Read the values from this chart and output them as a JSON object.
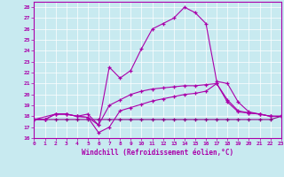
{
  "xlabel": "Windchill (Refroidissement éolien,°C)",
  "xlim": [
    0,
    23
  ],
  "ylim": [
    16,
    28.5
  ],
  "yticks": [
    16,
    17,
    18,
    19,
    20,
    21,
    22,
    23,
    24,
    25,
    26,
    27,
    28
  ],
  "xticks": [
    0,
    1,
    2,
    3,
    4,
    5,
    6,
    7,
    8,
    9,
    10,
    11,
    12,
    13,
    14,
    15,
    16,
    17,
    18,
    19,
    20,
    21,
    22,
    23
  ],
  "bg_color": "#c8eaf0",
  "line_color": "#aa00aa",
  "line_color2": "#880088",
  "grid_color": "#ffffff",
  "line_flat_x": [
    0,
    1,
    2,
    3,
    4,
    5,
    6,
    7,
    8,
    9,
    10,
    11,
    12,
    13,
    14,
    15,
    16,
    17,
    18,
    19,
    20,
    21,
    22,
    23
  ],
  "line_flat_y": [
    17.7,
    17.7,
    17.7,
    17.7,
    17.7,
    17.7,
    17.7,
    17.7,
    17.7,
    17.7,
    17.7,
    17.7,
    17.7,
    17.7,
    17.7,
    17.7,
    17.7,
    17.7,
    17.7,
    17.7,
    17.7,
    17.7,
    17.7,
    18.0
  ],
  "line_slow_x": [
    0,
    1,
    2,
    3,
    4,
    5,
    6,
    7,
    8,
    9,
    10,
    11,
    12,
    13,
    14,
    15,
    16,
    17,
    18,
    19,
    20,
    21,
    22,
    23
  ],
  "line_slow_y": [
    17.7,
    17.7,
    18.2,
    18.2,
    18.0,
    17.9,
    16.5,
    17.0,
    18.5,
    18.8,
    19.1,
    19.4,
    19.6,
    19.8,
    20.0,
    20.1,
    20.3,
    21.0,
    19.3,
    18.4,
    18.3,
    18.2,
    18.0,
    18.0
  ],
  "line_mid_x": [
    0,
    2,
    3,
    4,
    5,
    6,
    7,
    8,
    9,
    10,
    11,
    12,
    13,
    14,
    15,
    16,
    17,
    18,
    19,
    20,
    21,
    22,
    23
  ],
  "line_mid_y": [
    17.7,
    18.2,
    18.2,
    18.0,
    17.9,
    17.2,
    19.0,
    19.5,
    20.0,
    20.3,
    20.5,
    20.6,
    20.7,
    20.8,
    20.8,
    20.9,
    21.0,
    19.5,
    18.5,
    18.3,
    18.2,
    18.0,
    18.0
  ],
  "line_top_x": [
    0,
    1,
    2,
    3,
    4,
    5,
    6,
    7,
    8,
    9,
    10,
    11,
    12,
    13,
    14,
    15,
    16,
    17,
    18,
    19,
    20,
    21,
    22,
    23
  ],
  "line_top_y": [
    17.7,
    17.7,
    18.2,
    18.2,
    18.0,
    18.2,
    17.2,
    22.5,
    21.5,
    22.2,
    24.2,
    26.0,
    26.5,
    27.0,
    28.0,
    27.5,
    26.5,
    21.2,
    21.0,
    19.3,
    18.4,
    18.2,
    18.0,
    18.0
  ]
}
